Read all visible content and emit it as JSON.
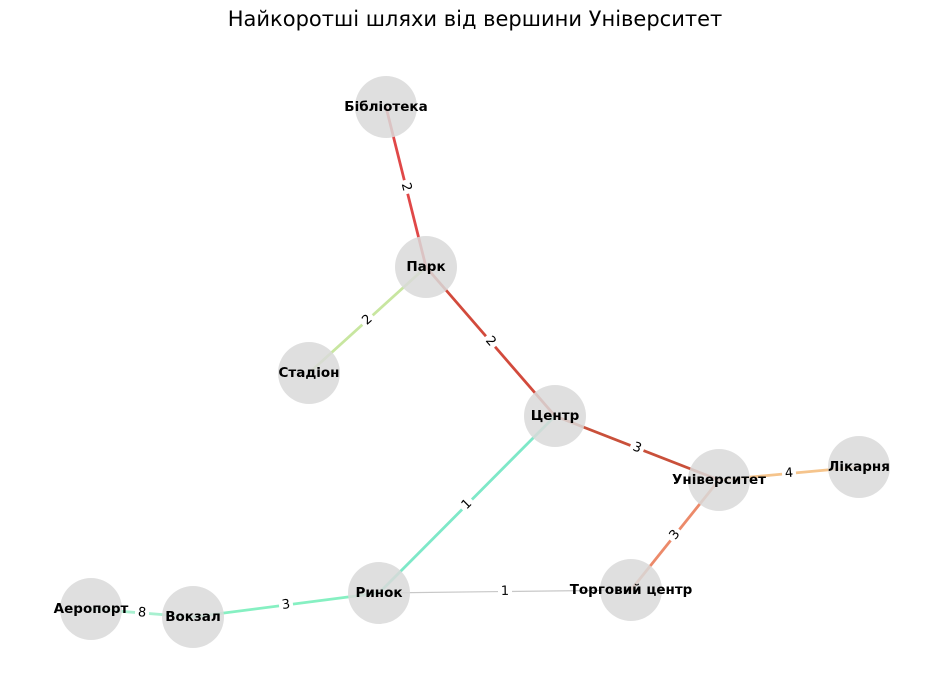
{
  "title": "Найкоротші шляхи від вершини Університет",
  "node_color": "#d9d9d9",
  "nodes": [
    {
      "id": "library",
      "label": "Бібліотека"
    },
    {
      "id": "park",
      "label": "Парк"
    },
    {
      "id": "stadium",
      "label": "Стадіон"
    },
    {
      "id": "center",
      "label": "Центр"
    },
    {
      "id": "university",
      "label": "Університет"
    },
    {
      "id": "hospital",
      "label": "Лікарня"
    },
    {
      "id": "mall",
      "label": "Торговий центр"
    },
    {
      "id": "market",
      "label": "Ринок"
    },
    {
      "id": "station",
      "label": "Вокзал"
    },
    {
      "id": "airport",
      "label": "Аеропорт"
    }
  ],
  "edges": [
    {
      "id": "library-park",
      "weight": "2",
      "color": "#e04848",
      "on_path": true
    },
    {
      "id": "park-stadium",
      "weight": "2",
      "color": "#c8e6a0",
      "on_path": true
    },
    {
      "id": "park-center",
      "weight": "2",
      "color": "#d24a3c",
      "on_path": true
    },
    {
      "id": "center-university",
      "weight": "3",
      "color": "#c9503a",
      "on_path": true
    },
    {
      "id": "university-hospital",
      "weight": "4",
      "color": "#f5c48c",
      "on_path": true
    },
    {
      "id": "university-mall",
      "weight": "3",
      "color": "#ec8a6a",
      "on_path": true
    },
    {
      "id": "center-market",
      "weight": "1",
      "color": "#7ee8c8",
      "on_path": true
    },
    {
      "id": "market-mall",
      "weight": "1",
      "color": "#c8c8c8",
      "on_path": false
    },
    {
      "id": "market-station",
      "weight": "3",
      "color": "#86f0c2",
      "on_path": true
    },
    {
      "id": "station-airport",
      "weight": "8",
      "color": "#a8f0d0",
      "on_path": true
    }
  ]
}
